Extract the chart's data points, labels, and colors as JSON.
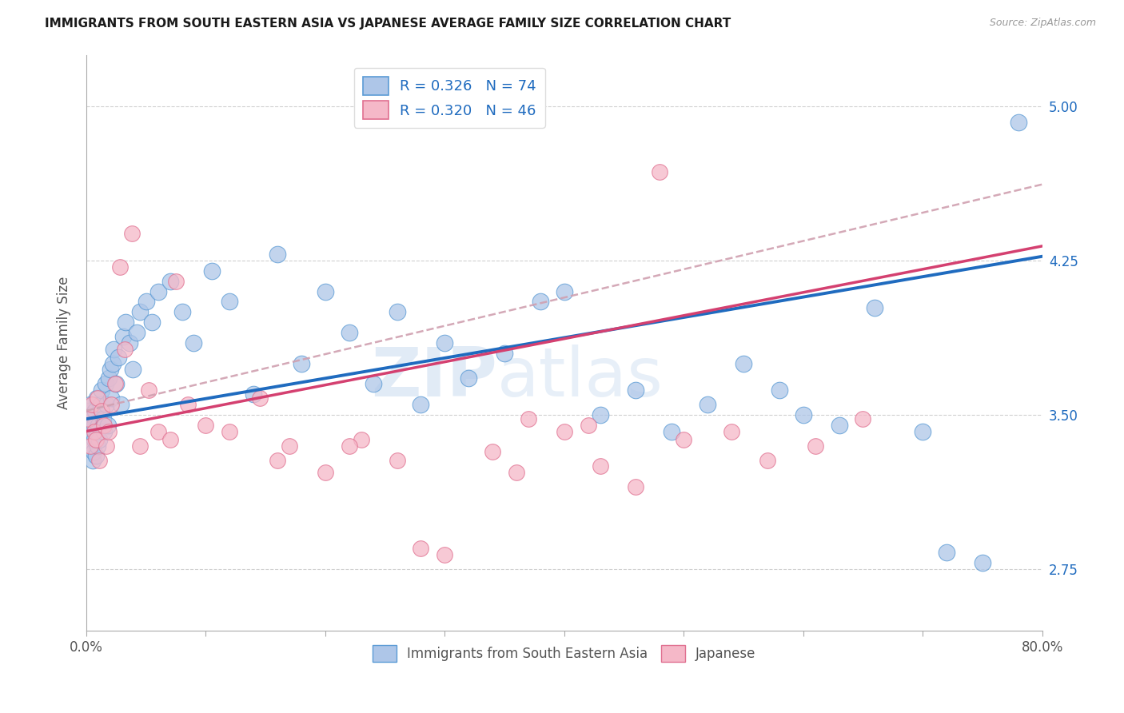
{
  "title": "IMMIGRANTS FROM SOUTH EASTERN ASIA VS JAPANESE AVERAGE FAMILY SIZE CORRELATION CHART",
  "source": "Source: ZipAtlas.com",
  "ylabel": "Average Family Size",
  "yticks": [
    2.75,
    3.5,
    4.25,
    5.0
  ],
  "xlim": [
    0.0,
    80.0
  ],
  "ylim": [
    2.45,
    5.25
  ],
  "watermark_zip": "ZIP",
  "watermark_atlas": "atlas",
  "legend_r1": "R = 0.326",
  "legend_n1": "N = 74",
  "legend_r2": "R = 0.320",
  "legend_n2": "N = 46",
  "color_blue_fill": "#aec6e8",
  "color_blue_edge": "#5b9bd5",
  "color_pink_fill": "#f5b8c8",
  "color_pink_edge": "#e07090",
  "color_line_blue": "#1f6bbf",
  "color_line_pink": "#d44070",
  "color_line_dashed": "#d0a0b0",
  "trend_blue_start": 3.48,
  "trend_blue_end": 4.27,
  "trend_pink_start": 3.42,
  "trend_pink_end": 4.32,
  "trend_dash_start": 3.52,
  "trend_dash_end": 4.62,
  "series1_x": [
    0.15,
    0.2,
    0.25,
    0.3,
    0.35,
    0.4,
    0.45,
    0.5,
    0.55,
    0.6,
    0.65,
    0.7,
    0.75,
    0.8,
    0.85,
    0.9,
    0.95,
    1.0,
    1.1,
    1.2,
    1.3,
    1.4,
    1.5,
    1.6,
    1.7,
    1.8,
    1.9,
    2.0,
    2.1,
    2.2,
    2.3,
    2.5,
    2.7,
    2.9,
    3.1,
    3.3,
    3.6,
    3.9,
    4.2,
    4.5,
    5.0,
    5.5,
    6.0,
    7.0,
    8.0,
    9.0,
    10.5,
    12.0,
    14.0,
    16.0,
    18.0,
    20.0,
    22.0,
    24.0,
    26.0,
    28.0,
    30.0,
    32.0,
    35.0,
    38.0,
    40.0,
    43.0,
    46.0,
    49.0,
    52.0,
    55.0,
    58.0,
    60.0,
    63.0,
    66.0,
    70.0,
    72.0,
    75.0,
    78.0
  ],
  "series1_y": [
    3.52,
    3.45,
    3.48,
    3.38,
    3.55,
    3.35,
    3.42,
    3.5,
    3.28,
    3.32,
    3.45,
    3.38,
    3.52,
    3.3,
    3.42,
    3.58,
    3.35,
    3.45,
    3.38,
    3.55,
    3.62,
    3.48,
    3.42,
    3.65,
    3.55,
    3.45,
    3.68,
    3.72,
    3.58,
    3.75,
    3.82,
    3.65,
    3.78,
    3.55,
    3.88,
    3.95,
    3.85,
    3.72,
    3.9,
    4.0,
    4.05,
    3.95,
    4.1,
    4.15,
    4.0,
    3.85,
    4.2,
    4.05,
    3.6,
    4.28,
    3.75,
    4.1,
    3.9,
    3.65,
    4.0,
    3.55,
    3.85,
    3.68,
    3.8,
    4.05,
    4.1,
    3.5,
    3.62,
    3.42,
    3.55,
    3.75,
    3.62,
    3.5,
    3.45,
    4.02,
    3.42,
    2.83,
    2.78,
    4.92
  ],
  "series2_x": [
    0.2,
    0.35,
    0.5,
    0.65,
    0.8,
    0.95,
    1.1,
    1.3,
    1.5,
    1.7,
    1.9,
    2.1,
    2.4,
    2.8,
    3.2,
    3.8,
    4.5,
    5.2,
    6.0,
    7.0,
    8.5,
    10.0,
    12.0,
    14.5,
    17.0,
    20.0,
    23.0,
    26.0,
    30.0,
    34.0,
    37.0,
    40.0,
    43.0,
    46.0,
    50.0,
    54.0,
    57.0,
    61.0,
    65.0,
    7.5,
    16.0,
    22.0,
    28.0,
    36.0,
    42.0,
    48.0
  ],
  "series2_y": [
    3.48,
    3.35,
    3.55,
    3.42,
    3.38,
    3.58,
    3.28,
    3.52,
    3.45,
    3.35,
    3.42,
    3.55,
    3.65,
    4.22,
    3.82,
    4.38,
    3.35,
    3.62,
    3.42,
    3.38,
    3.55,
    3.45,
    3.42,
    3.58,
    3.35,
    3.22,
    3.38,
    3.28,
    2.82,
    3.32,
    3.48,
    3.42,
    3.25,
    3.15,
    3.38,
    3.42,
    3.28,
    3.35,
    3.48,
    4.15,
    3.28,
    3.35,
    2.85,
    3.22,
    3.45,
    4.68
  ]
}
